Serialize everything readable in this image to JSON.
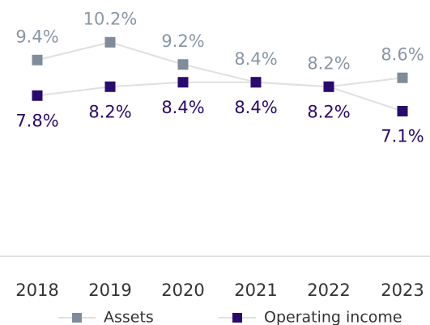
{
  "chart_data": {
    "type": "line",
    "categories": [
      "2018",
      "2019",
      "2020",
      "2021",
      "2022",
      "2023"
    ],
    "series": [
      {
        "name": "Assets",
        "color": "#7f8c99",
        "label_color": "#8a96a3",
        "label_position": "above",
        "values": [
          9.4,
          10.2,
          9.2,
          8.4,
          8.2,
          8.6
        ],
        "value_labels": [
          "9.4%",
          "10.2%",
          "9.2%",
          "8.4%",
          "8.2%",
          "8.6%"
        ]
      },
      {
        "name": "Operating income",
        "color": "#2a0a6e",
        "label_color": "#2a0a6e",
        "label_position": "below",
        "values": [
          7.8,
          8.2,
          8.4,
          8.4,
          8.2,
          7.1
        ],
        "value_labels": [
          "7.8%",
          "8.2%",
          "8.4%",
          "8.4%",
          "8.2%",
          "7.1%"
        ]
      }
    ],
    "ylim": [
      0.5,
      10.5
    ],
    "line_color": "#e0e0e0",
    "legend": "bottom"
  }
}
